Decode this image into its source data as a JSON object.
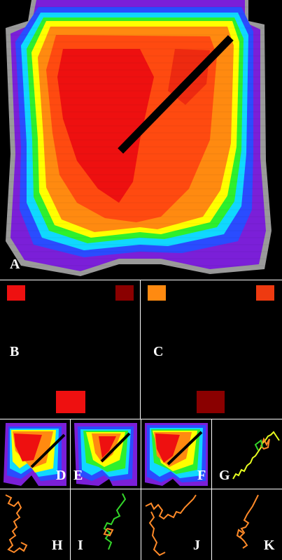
{
  "labels": {
    "a": "A",
    "b": "B",
    "c": "C",
    "d": "D",
    "e": "E",
    "f": "F",
    "g": "G",
    "h": "H",
    "i": "I",
    "j": "J",
    "k": "K"
  },
  "colors": {
    "background": "#000000",
    "separator": "#ffffff",
    "outer_gray": "#9a9a9a",
    "purple": "#7b1fd8",
    "blue": "#2a4cff",
    "cyan": "#10d8ff",
    "green": "#2df02d",
    "yellow": "#ffff00",
    "orange": "#ff8a10",
    "red_orange": "#ff4a10",
    "red": "#ee1010",
    "dark_red": "#8a0000",
    "line": "#000000",
    "trace_orange": "#ff8a28",
    "trace_green": "#33d62a",
    "trace_yellow": "#e8ff20"
  }
}
